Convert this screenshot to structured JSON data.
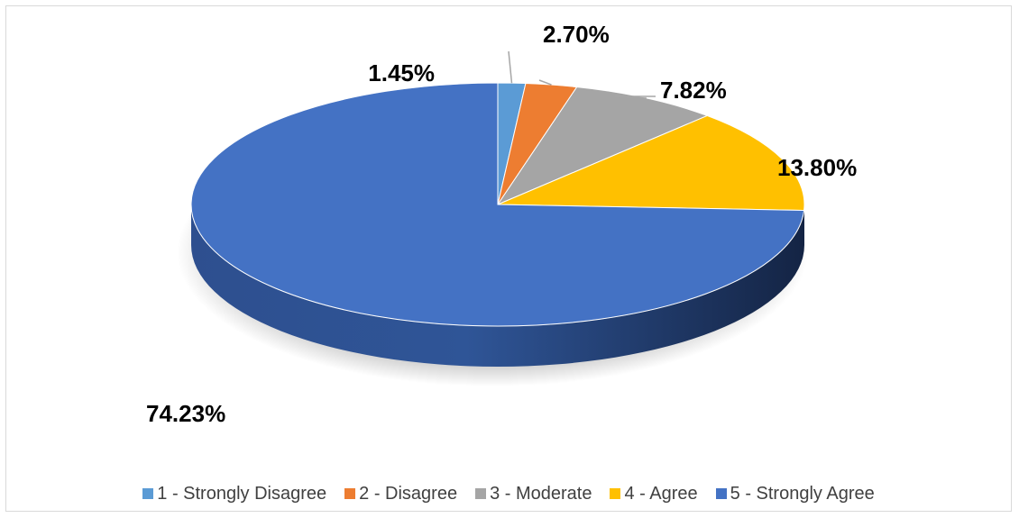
{
  "chart_data": {
    "type": "pie",
    "title": "",
    "categories": [
      "1 - Strongly Disagree",
      "2 - Disagree",
      "3 - Moderate",
      "4 - Agree",
      "5 - Strongly Agree"
    ],
    "values": [
      1.45,
      2.7,
      7.82,
      13.8,
      74.23
    ],
    "data_labels": [
      "1.45%",
      "2.70%",
      "7.82%",
      "13.80%",
      "74.23%"
    ],
    "colors": [
      "#5b9bd5",
      "#ed7d31",
      "#a5a5a5",
      "#ffc000",
      "#4472c4"
    ],
    "legend_position": "bottom",
    "three_d": true
  }
}
